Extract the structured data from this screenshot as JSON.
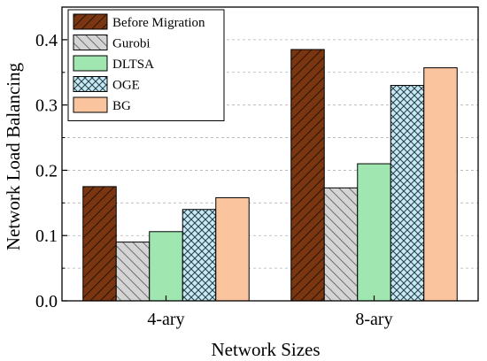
{
  "chart_data": {
    "type": "bar",
    "title": "",
    "xlabel": "Network Sizes",
    "ylabel": "Network Load Balancing",
    "categories": [
      "4-ary",
      "8-ary"
    ],
    "ylim": [
      0,
      0.45
    ],
    "yticks": [
      "0.0",
      "0.1",
      "0.2",
      "0.3",
      "0.4"
    ],
    "ytick_values": [
      0.0,
      0.1,
      0.2,
      0.3,
      0.4
    ],
    "grid": "horizontal dashed",
    "legend_position": "top-left",
    "series": [
      {
        "name": "Before Migration",
        "values": [
          0.175,
          0.385
        ],
        "color": "#7a3610",
        "pattern": "diag-dark"
      },
      {
        "name": "Gurobi",
        "values": [
          0.09,
          0.173
        ],
        "color": "#cccccc",
        "pattern": "diag-gray"
      },
      {
        "name": "DLTSA",
        "values": [
          0.106,
          0.21
        ],
        "color": "#9fe6b1",
        "pattern": "solid"
      },
      {
        "name": "OGE",
        "values": [
          0.14,
          0.33
        ],
        "color": "#bfe8f3",
        "pattern": "crosshatch"
      },
      {
        "name": "BG",
        "values": [
          0.158,
          0.357
        ],
        "color": "#f9c49e",
        "pattern": "solid"
      }
    ]
  }
}
